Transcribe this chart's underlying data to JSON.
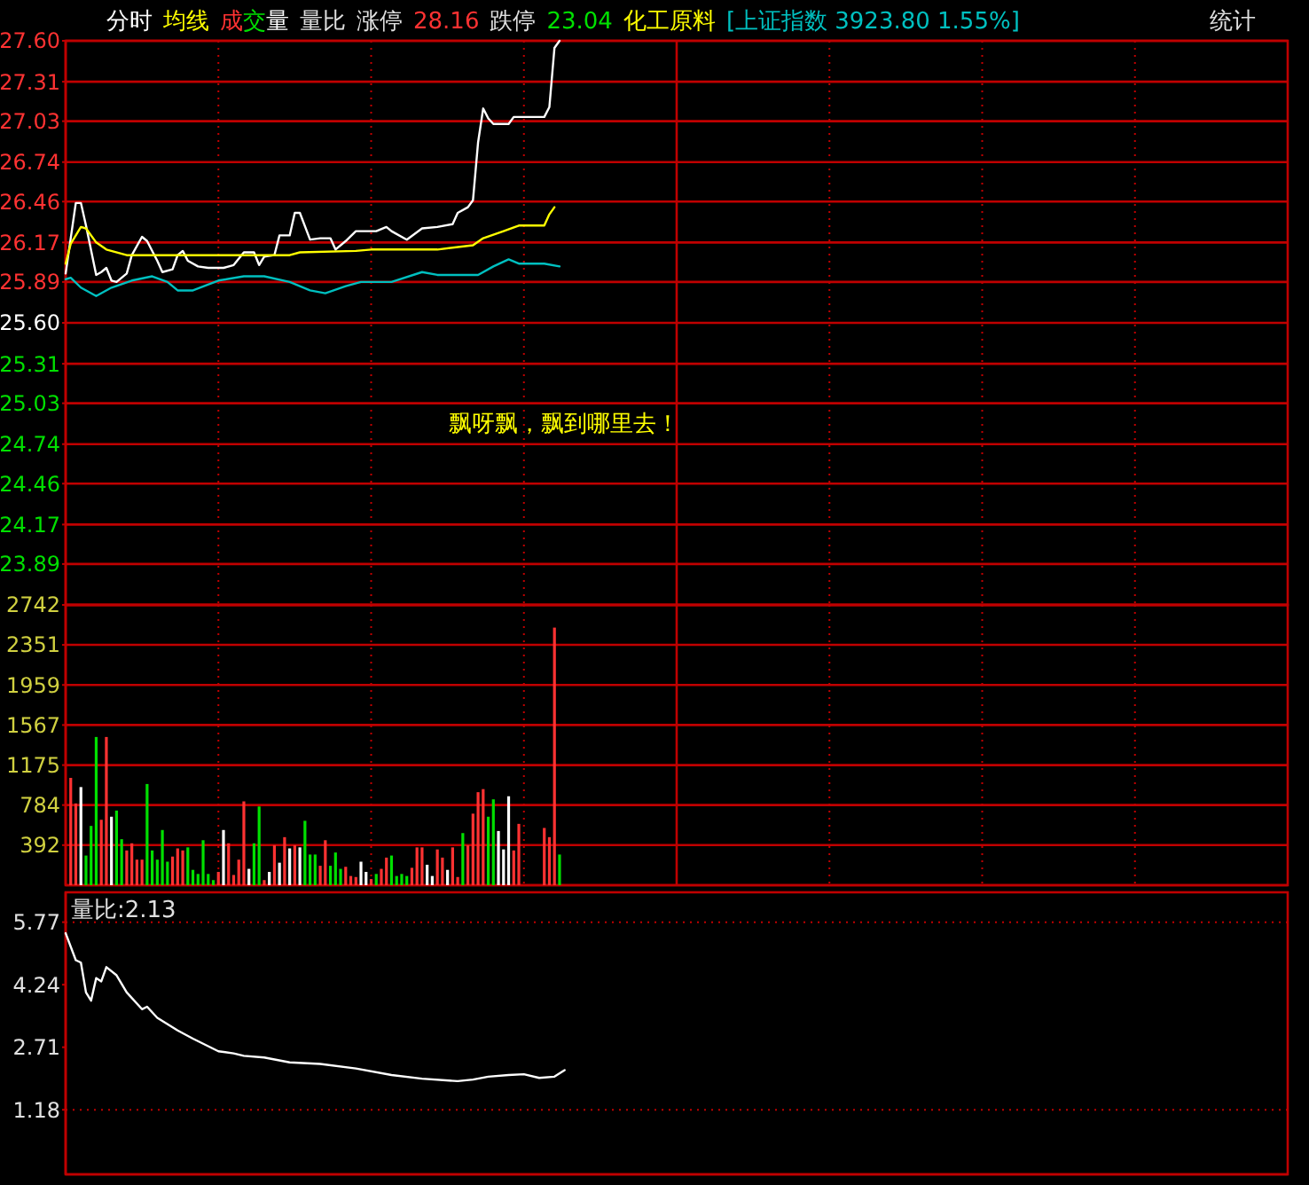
{
  "chart_data": [
    {
      "type": "line",
      "categories": [
        null,
        null,
        null,
        null,
        null,
        null,
        null,
        null,
        null,
        null,
        null,
        null,
        null,
        null,
        null,
        null,
        null,
        null,
        null,
        null,
        null,
        null,
        null,
        null,
        null,
        null,
        null,
        null,
        null,
        null,
        null,
        null,
        null,
        null,
        null,
        null,
        null,
        null,
        null,
        null,
        null,
        null,
        null,
        null,
        null,
        null,
        null,
        null,
        null,
        null,
        null,
        null,
        null,
        null,
        null,
        null,
        null,
        null,
        null,
        null,
        null,
        null,
        null,
        null,
        null,
        null,
        null,
        null,
        null,
        null,
        null,
        null,
        null,
        null,
        null,
        null,
        null,
        null,
        null,
        null,
        null,
        null,
        null,
        null,
        null,
        null,
        null,
        null,
        null,
        null,
        null,
        null,
        null,
        null,
        null,
        null,
        null,
        null,
        null,
        null,
        null,
        null,
        null,
        null,
        null,
        null,
        null,
        null,
        null,
        null,
        null,
        null,
        null,
        null,
        null,
        null,
        null,
        null,
        null,
        null,
        null,
        null,
        null,
        null,
        null,
        null,
        null,
        null,
        null,
        null,
        null,
        null,
        null,
        null,
        null,
        null,
        null,
        null,
        null,
        null,
        null,
        null,
        null,
        null,
        null,
        null,
        null,
        null,
        null,
        null,
        null,
        null,
        null,
        null,
        null,
        null,
        null,
        null,
        null,
        null,
        null,
        null,
        null,
        null,
        null,
        null,
        null,
        null,
        null,
        null,
        null,
        null,
        null,
        null,
        null,
        null,
        null,
        null,
        null,
        null,
        null,
        null,
        null,
        null,
        null,
        null,
        null,
        null,
        null,
        null,
        null,
        null,
        null,
        null,
        null,
        null,
        null,
        null,
        null,
        null,
        null,
        null,
        null,
        null,
        null,
        null,
        null,
        null,
        null,
        null,
        null,
        null,
        null,
        null,
        null,
        null,
        null,
        null,
        null,
        null,
        null,
        null,
        null,
        null,
        null,
        null,
        null,
        null,
        null,
        null,
        null,
        null,
        null,
        null,
        null,
        null,
        null,
        null,
        null,
        null,
        null
      ],
      "ylim": [
        23.6,
        27.6
      ],
      "yticks": [
        23.89,
        24.17,
        24.46,
        24.74,
        25.03,
        25.31,
        {
          "value": 25.6,
          "label": "25.60"
        },
        25.89,
        26.17,
        26.46,
        26.74,
        27.03,
        27.31,
        {
          "value": 27.6,
          "label": "27.60"
        }
      ],
      "grid": "y",
      "annotations": [
        "成交量",
        "量比",
        "涨停",
        "28.16",
        "跌停",
        "23.04",
        "化工原料",
        "[上证指数 3923.80 1.55%]",
        "统计",
        "飘呀飘，飘到哪里去！"
      ],
      "series": [
        {
          "name": "分时",
          "color": "#ffffff",
          "values": [
            25.95,
            null,
            26.45,
            26.45,
            26.29,
            null,
            25.94,
            25.96,
            25.99,
            25.9,
            25.89,
            null,
            25.95,
            26.08,
            null,
            26.21,
            26.18,
            null,
            26.04,
            25.96,
            null,
            25.98,
            26.08,
            26.11,
            26.04,
            null,
            26,
            null,
            25.99,
            null,
            null,
            25.99,
            null,
            26.01,
            null,
            26.1,
            null,
            26.1,
            26.01,
            26.07,
            null,
            26.08,
            26.22,
            null,
            26.22,
            26.38,
            26.38,
            null,
            26.19,
            null,
            26.2,
            null,
            26.2,
            26.12,
            null,
            26.18,
            null,
            26.25,
            null,
            null,
            null,
            26.25,
            null,
            26.28,
            26.25,
            null,
            null,
            26.19,
            null,
            null,
            26.27,
            null,
            null,
            26.28,
            null,
            null,
            26.3,
            26.38,
            null,
            26.42,
            26.47,
            26.88,
            27.12,
            27.05,
            27.01,
            null,
            null,
            27.01,
            27.06,
            null,
            null,
            null,
            null,
            null,
            27.06,
            27.13,
            27.55,
            27.6,
            null,
            null,
            null,
            null,
            null,
            null,
            null,
            null,
            null,
            null,
            null,
            null,
            null,
            null,
            null,
            null,
            null,
            null,
            null,
            null,
            null,
            null,
            null,
            null,
            null,
            null,
            null,
            null,
            null,
            null,
            null,
            null,
            null,
            null,
            null,
            null,
            null,
            null,
            null,
            null,
            null,
            null,
            null,
            null,
            null,
            null,
            null,
            null,
            null,
            null,
            null,
            null,
            null,
            null,
            null,
            null,
            null,
            null,
            null,
            null,
            null,
            null,
            null,
            null,
            null,
            null,
            null,
            null,
            null,
            null,
            null,
            null,
            null,
            null,
            null,
            null,
            null,
            null,
            null,
            null,
            null,
            null,
            null,
            null,
            null,
            null,
            null,
            null,
            null,
            null,
            null,
            null,
            null,
            null,
            null,
            null,
            null,
            null,
            null,
            null,
            null,
            null,
            null,
            null,
            null,
            null,
            null,
            null,
            null,
            null,
            null,
            null,
            null,
            null,
            null,
            null,
            null,
            null,
            null,
            null,
            null,
            null,
            null,
            null,
            null,
            null,
            null,
            null,
            null,
            null,
            null,
            null,
            null,
            null,
            null,
            null,
            null,
            null,
            null,
            null,
            null,
            null,
            null
          ]
        },
        {
          "name": "均线",
          "color": "#ffff00",
          "values": [
            26.02,
            26.16,
            null,
            26.28,
            26.27,
            null,
            26.17,
            null,
            26.12,
            null,
            null,
            null,
            26.08,
            null,
            null,
            null,
            null,
            26.08,
            null,
            null,
            null,
            null,
            null,
            null,
            26.08,
            null,
            null,
            null,
            null,
            null,
            null,
            null,
            null,
            null,
            26.08,
            null,
            null,
            null,
            null,
            null,
            null,
            null,
            null,
            null,
            26.08,
            null,
            26.1,
            null,
            null,
            null,
            null,
            null,
            null,
            null,
            null,
            null,
            null,
            26.11,
            null,
            null,
            26.12,
            null,
            null,
            null,
            null,
            null,
            null,
            null,
            null,
            null,
            null,
            null,
            null,
            26.12,
            null,
            null,
            null,
            null,
            null,
            null,
            26.15,
            null,
            26.2,
            null,
            null,
            null,
            26.25,
            null,
            null,
            26.29,
            null,
            null,
            null,
            null,
            26.29,
            26.37,
            26.42,
            null,
            null,
            null,
            null,
            null,
            null,
            null,
            null,
            null,
            null,
            null,
            null,
            null,
            null,
            null,
            null,
            null,
            null,
            null,
            null,
            null,
            null,
            null,
            null,
            null,
            null,
            null,
            null,
            null,
            null,
            null,
            null,
            null,
            null,
            null,
            null,
            null,
            null,
            null,
            null,
            null,
            null,
            null,
            null,
            null,
            null,
            null,
            null,
            null,
            null,
            null,
            null,
            null,
            null,
            null,
            null,
            null,
            null,
            null,
            null,
            null,
            null,
            null,
            null,
            null,
            null,
            null,
            null,
            null,
            null,
            null,
            null,
            null,
            null,
            null,
            null,
            null,
            null,
            null,
            null,
            null,
            null,
            null,
            null,
            null,
            null,
            null,
            null,
            null,
            null,
            null,
            null,
            null,
            null,
            null,
            null,
            null,
            null,
            null,
            null,
            null,
            null,
            null,
            null,
            null,
            null,
            null,
            null,
            null,
            null,
            null,
            null,
            null,
            null,
            null,
            null,
            null,
            null,
            null,
            null,
            null,
            null,
            null,
            null,
            null,
            null,
            null,
            null,
            null,
            null,
            null,
            null,
            null,
            null,
            null,
            null,
            null,
            null,
            null,
            null,
            null,
            null,
            null,
            null
          ]
        },
        {
          "color": "#00c0c0",
          "values": [
            25.91,
            25.92,
            null,
            25.85,
            null,
            null,
            25.79,
            null,
            null,
            25.85,
            null,
            null,
            null,
            25.9,
            null,
            null,
            null,
            25.93,
            null,
            null,
            25.89,
            null,
            25.83,
            null,
            null,
            25.83,
            null,
            null,
            null,
            null,
            25.9,
            null,
            null,
            null,
            null,
            25.93,
            null,
            null,
            null,
            25.93,
            null,
            null,
            null,
            null,
            25.89,
            null,
            null,
            null,
            25.83,
            null,
            null,
            25.81,
            null,
            null,
            null,
            25.86,
            null,
            null,
            25.89,
            null,
            null,
            null,
            null,
            null,
            25.89,
            null,
            null,
            null,
            null,
            null,
            25.96,
            null,
            null,
            25.94,
            null,
            null,
            null,
            null,
            null,
            null,
            null,
            25.94,
            null,
            null,
            26,
            null,
            null,
            26.05,
            null,
            26.02,
            null,
            null,
            null,
            null,
            26.02,
            null,
            null,
            26,
            null,
            null,
            null,
            null,
            null,
            null,
            null,
            null,
            null,
            null,
            null,
            null,
            null,
            null,
            null,
            null,
            null,
            null,
            null,
            null,
            null,
            null,
            null,
            null,
            null,
            null,
            null,
            null,
            null,
            null,
            null,
            null,
            null,
            null,
            null,
            null,
            null,
            null,
            null,
            null,
            null,
            null,
            null,
            null,
            null,
            null,
            null,
            null,
            null,
            null,
            null,
            null,
            null,
            null,
            null,
            null,
            null,
            null,
            null,
            null,
            null,
            null,
            null,
            null,
            null,
            null,
            null,
            null,
            null,
            null,
            null,
            null,
            null,
            null,
            null,
            null,
            null,
            null,
            null,
            null,
            null,
            null,
            null,
            null,
            null,
            null,
            null,
            null,
            null,
            null,
            null,
            null,
            null,
            null,
            null,
            null,
            null,
            null,
            null,
            null,
            null,
            null,
            null,
            null,
            null,
            null,
            null,
            null,
            null,
            null,
            null,
            null,
            null,
            null,
            null,
            null,
            null,
            null,
            null,
            null,
            null,
            null,
            null,
            null,
            null,
            null,
            null,
            null,
            null,
            null,
            null,
            null,
            null,
            null,
            null,
            null,
            null,
            null,
            null,
            null,
            null,
            null,
            null
          ]
        }
      ]
    },
    {
      "type": "bar",
      "categories": [
        null,
        null,
        null,
        null,
        null,
        null,
        null,
        null,
        null,
        null,
        null,
        null,
        null,
        null,
        null,
        null,
        null,
        null,
        null,
        null,
        null,
        null,
        null,
        null,
        null,
        null,
        null,
        null,
        null,
        null,
        null,
        null,
        null,
        null,
        null,
        null,
        null,
        null,
        null,
        null,
        null,
        null,
        null,
        null,
        null,
        null,
        null,
        null,
        null,
        null,
        null,
        null,
        null,
        null,
        null,
        null,
        null,
        null,
        null,
        null,
        null,
        null,
        null,
        null,
        null,
        null,
        null,
        null,
        null,
        null,
        null,
        null,
        null,
        null,
        null,
        null,
        null,
        null,
        null,
        null,
        null,
        null,
        null,
        null,
        null,
        null,
        null,
        null,
        null,
        null,
        null,
        null,
        null,
        null,
        null,
        null,
        null,
        null,
        null,
        null,
        null,
        null,
        null,
        null,
        null,
        null,
        null,
        null,
        null,
        null,
        null,
        null,
        null,
        null,
        null,
        null,
        null,
        null,
        null,
        null,
        null,
        null,
        null,
        null,
        null,
        null,
        null,
        null,
        null,
        null,
        null,
        null,
        null,
        null,
        null,
        null,
        null,
        null,
        null,
        null,
        null,
        null,
        null,
        null,
        null,
        null,
        null,
        null,
        null,
        null,
        null,
        null,
        null,
        null,
        null,
        null,
        null,
        null,
        null,
        null,
        null,
        null,
        null,
        null,
        null,
        null,
        null,
        null,
        null,
        null,
        null,
        null,
        null,
        null,
        null,
        null,
        null,
        null,
        null,
        null,
        null,
        null,
        null,
        null,
        null,
        null,
        null,
        null,
        null,
        null,
        null,
        null,
        null,
        null,
        null,
        null,
        null,
        null,
        null,
        null,
        null,
        null,
        null,
        null,
        null,
        null,
        null,
        null,
        null,
        null,
        null,
        null,
        null,
        null,
        null,
        null,
        null,
        null,
        null,
        null,
        null,
        null,
        null,
        null,
        null,
        null,
        null,
        null,
        null,
        null,
        null,
        null,
        null,
        null,
        null,
        null,
        null,
        null,
        null,
        null,
        null
      ],
      "ylim": [
        0,
        2742
      ],
      "yticks": [
        392,
        784,
        1175,
        1567,
        1959,
        2351,
        2742
      ],
      "grid": "y",
      "values": [
        null,
        1050,
        800,
        960,
        290,
        580,
        1450,
        640,
        1450,
        670,
        730,
        450,
        340,
        410,
        250,
        250,
        990,
        340,
        250,
        540,
        230,
        280,
        360,
        340,
        370,
        150,
        110,
        440,
        110,
        50,
        130,
        540,
        410,
        100,
        250,
        820,
        160,
        410,
        770,
        50,
        130,
        390,
        220,
        470,
        360,
        390,
        370,
        630,
        300,
        300,
        190,
        440,
        190,
        320,
        160,
        180,
        90,
        80,
        230,
        130,
        60,
        110,
        160,
        270,
        290,
        90,
        110,
        90,
        170,
        370,
        370,
        200,
        90,
        350,
        270,
        150,
        370,
        80,
        510,
        390,
        700,
        910,
        940,
        670,
        840,
        530,
        350,
        870,
        340,
        600,
        null,
        null,
        null,
        null,
        560,
        470,
        2520,
        300,
        null,
        null,
        null,
        null,
        null,
        null,
        null,
        null,
        null,
        null,
        null,
        null,
        null,
        null,
        null,
        null,
        null,
        null,
        null,
        null,
        null,
        null,
        null,
        null,
        null,
        null,
        null,
        null,
        null,
        null,
        null,
        null,
        null,
        null,
        null,
        null,
        null,
        null,
        null,
        null,
        null,
        null,
        null,
        null,
        null,
        null,
        null,
        null,
        null,
        null,
        null,
        null,
        null,
        null,
        null,
        null,
        null,
        null,
        null,
        null,
        null,
        null,
        null,
        null,
        null,
        null,
        null,
        null,
        null,
        null,
        null,
        null,
        null,
        null,
        null,
        null,
        null,
        null,
        null,
        null,
        null,
        null,
        null,
        null,
        null,
        null,
        null,
        null,
        null,
        null,
        null,
        null,
        null,
        null,
        null,
        null,
        null,
        null,
        null,
        null,
        null,
        null,
        null,
        null,
        null,
        null,
        null,
        null,
        null,
        null,
        null,
        null,
        null,
        null,
        null,
        null,
        null,
        null,
        null,
        null,
        null,
        null,
        null,
        null,
        null,
        null,
        null,
        null,
        null,
        null,
        null,
        null,
        null,
        null,
        null,
        null,
        null,
        null,
        null,
        null,
        null,
        null,
        null
      ],
      "colors": [
        null,
        "#ff3232",
        "#ff3232",
        "#ffffff",
        "#00e000",
        "#00e000",
        "#00e000",
        "#ff3232",
        "#ff3232",
        "#ffffff",
        "#00e000",
        "#00e000",
        "#ff3232",
        "#ff3232",
        "#ff3232",
        "#ff3232",
        "#00e000",
        "#00e000",
        "#00e000",
        "#00e000",
        "#00e000",
        "#ff3232",
        "#ff3232",
        "#ff3232",
        "#00e000",
        "#00e000",
        "#00e000",
        "#00e000",
        "#00e000",
        "#00e000",
        "#ff3232",
        "#ffffff",
        "#ff3232",
        "#ff3232",
        "#ff3232",
        "#ff3232",
        "#ffffff",
        "#00e000",
        "#00e000",
        "#ff3232",
        "#ffffff",
        "#ff3232",
        "#ffffff",
        "#ff3232",
        "#ffffff",
        "#ff3232",
        "#ffffff",
        "#00e000",
        "#00e000",
        "#00e000",
        "#ff3232",
        "#ff3232",
        "#00e000",
        "#00e000",
        "#00e000",
        "#ff3232",
        "#ff3232",
        "#ff3232",
        "#ffffff",
        "#ffffff",
        "#ff3232",
        "#00e000",
        "#ff3232",
        "#ff3232",
        "#00e000",
        "#00e000",
        "#00e000",
        "#00e000",
        "#ff3232",
        "#ff3232",
        "#ff3232",
        "#ffffff",
        "#ffffff",
        "#ff3232",
        "#ff3232",
        "#ffffff",
        "#ff3232",
        "#ff3232",
        "#00e000",
        "#ff3232",
        "#ff3232",
        "#ff3232",
        "#ff3232",
        "#00e000",
        "#00e000",
        "#ffffff",
        "#ffffff",
        "#ffffff",
        "#ff3232",
        "#ff3232",
        null,
        null,
        null,
        null,
        "#ff3232",
        "#ff3232",
        "#ff3232",
        "#00e000",
        null,
        null,
        null,
        null,
        null,
        null,
        null,
        null,
        null,
        null,
        null,
        null,
        null,
        null,
        null,
        null,
        null,
        null,
        null,
        null,
        null,
        null,
        null,
        null,
        null,
        null,
        null,
        null,
        null,
        null,
        null,
        null,
        null,
        null,
        null,
        null,
        null,
        null,
        null,
        null,
        null,
        null,
        null,
        null,
        null,
        null,
        null,
        null,
        null,
        null,
        null,
        null,
        null,
        null,
        null,
        null,
        null,
        null,
        null,
        null,
        null,
        null,
        null,
        null,
        null,
        null,
        null,
        null,
        null,
        null,
        null,
        null,
        null,
        null,
        null,
        null,
        null,
        null,
        null,
        null,
        null,
        null,
        null,
        null,
        null,
        null,
        null,
        null,
        null,
        null,
        null,
        null,
        null,
        null,
        null,
        null,
        null,
        null,
        null,
        null,
        null,
        null,
        null,
        null,
        null,
        null,
        null,
        null,
        null,
        null,
        null,
        null,
        null,
        null,
        null,
        null,
        null,
        null,
        null,
        null,
        null,
        null,
        null,
        null,
        null,
        null,
        null,
        null,
        null,
        null,
        null,
        null,
        null,
        null,
        null,
        null,
        null,
        null,
        null,
        null,
        null,
        null,
        null
      ]
    },
    {
      "type": "line",
      "title": "量比:2.13",
      "categories": [
        null,
        null,
        null,
        null,
        null,
        null,
        null,
        null,
        null,
        null,
        null,
        null,
        null,
        null,
        null,
        null,
        null,
        null,
        null,
        null,
        null,
        null,
        null,
        null,
        null,
        null,
        null,
        null,
        null,
        null,
        null,
        null,
        null,
        null,
        null,
        null,
        null,
        null,
        null,
        null,
        null,
        null,
        null,
        null,
        null,
        null,
        null,
        null,
        null,
        null,
        null,
        null,
        null,
        null,
        null,
        null,
        null,
        null,
        null,
        null,
        null,
        null,
        null,
        null,
        null,
        null,
        null,
        null,
        null,
        null,
        null,
        null,
        null,
        null,
        null,
        null,
        null,
        null,
        null,
        null,
        null,
        null,
        null,
        null,
        null,
        null,
        null,
        null,
        null,
        null,
        null,
        null,
        null,
        null,
        null,
        null,
        null,
        null,
        null,
        null,
        null,
        null,
        null,
        null,
        null,
        null,
        null,
        null,
        null,
        null,
        null,
        null,
        null,
        null,
        null,
        null,
        null,
        null,
        null,
        null,
        null,
        null,
        null,
        null,
        null,
        null,
        null,
        null,
        null,
        null,
        null,
        null,
        null,
        null,
        null,
        null,
        null,
        null,
        null,
        null,
        null,
        null,
        null,
        null,
        null,
        null,
        null,
        null,
        null,
        null,
        null,
        null,
        null,
        null,
        null,
        null,
        null,
        null,
        null,
        null,
        null,
        null,
        null,
        null,
        null,
        null,
        null,
        null,
        null,
        null,
        null,
        null,
        null,
        null,
        null,
        null,
        null,
        null,
        null,
        null,
        null,
        null,
        null,
        null,
        null,
        null,
        null,
        null,
        null,
        null,
        null,
        null,
        null,
        null,
        null,
        null,
        null,
        null,
        null,
        null,
        null,
        null,
        null,
        null,
        null,
        null,
        null,
        null,
        null,
        null,
        null,
        null,
        null,
        null,
        null,
        null,
        null,
        null,
        null,
        null,
        null,
        null,
        null,
        null,
        null,
        null,
        null,
        null,
        null,
        null,
        null,
        null,
        null,
        null,
        null,
        null,
        null,
        null,
        null,
        null,
        null
      ],
      "ylim": [
        -0.4,
        6.5
      ],
      "yticks": [
        1.18,
        2.71,
        4.24,
        5.77
      ],
      "ref_lines": [
        {
          "axis": "y",
          "value": 5.77,
          "line_style": "dotted"
        },
        {
          "axis": "y",
          "value": 1.18,
          "line_style": "dotted"
        }
      ],
      "series": [
        {
          "color": "#ffffff",
          "values": [
            5.5,
            null,
            4.84,
            4.78,
            4.05,
            3.85,
            4.4,
            4.32,
            4.67,
            null,
            4.47,
            null,
            4.05,
            null,
            null,
            3.64,
            3.7,
            null,
            3.43,
            null,
            null,
            null,
            3.12,
            null,
            null,
            2.92,
            null,
            null,
            null,
            null,
            2.61,
            null,
            null,
            2.56,
            null,
            2.5,
            null,
            null,
            null,
            2.46,
            null,
            null,
            null,
            null,
            2.34,
            null,
            null,
            null,
            null,
            null,
            2.3,
            null,
            null,
            null,
            null,
            null,
            null,
            2.19,
            null,
            null,
            null,
            null,
            null,
            null,
            2.03,
            null,
            null,
            null,
            null,
            null,
            1.94,
            null,
            null,
            null,
            null,
            null,
            null,
            1.88,
            null,
            null,
            1.92,
            null,
            null,
            1.99,
            null,
            null,
            null,
            2.03,
            null,
            null,
            2.05,
            null,
            null,
            1.96,
            null,
            null,
            1.99,
            null,
            2.15,
            null,
            null,
            null,
            null,
            null,
            null,
            null,
            null,
            null,
            null,
            null,
            null,
            null,
            null,
            null,
            null,
            null,
            null,
            null,
            null,
            null,
            null,
            null,
            null,
            null,
            null,
            null,
            null,
            null,
            null,
            null,
            null,
            null,
            null,
            null,
            null,
            null,
            null,
            null,
            null,
            null,
            null,
            null,
            null,
            null,
            null,
            null,
            null,
            null,
            null,
            null,
            null,
            null,
            null,
            null,
            null,
            null,
            null,
            null,
            null,
            null,
            null,
            null,
            null,
            null,
            null,
            null,
            null,
            null,
            null,
            null,
            null,
            null,
            null,
            null,
            null,
            null,
            null,
            null,
            null,
            null,
            null,
            null,
            null,
            null,
            null,
            null,
            null,
            null,
            null,
            null,
            null,
            null,
            null,
            null,
            null,
            null,
            null,
            null,
            null,
            null,
            null,
            null,
            null,
            null,
            null,
            null,
            null,
            null,
            null,
            null,
            null,
            null,
            null,
            null,
            null,
            null,
            null,
            null,
            null,
            null,
            null,
            null,
            null,
            null,
            null,
            null,
            null,
            null,
            null,
            null,
            null,
            null,
            null,
            null,
            null,
            null,
            null,
            null,
            null,
            null,
            null
          ]
        }
      ]
    }
  ]
}
